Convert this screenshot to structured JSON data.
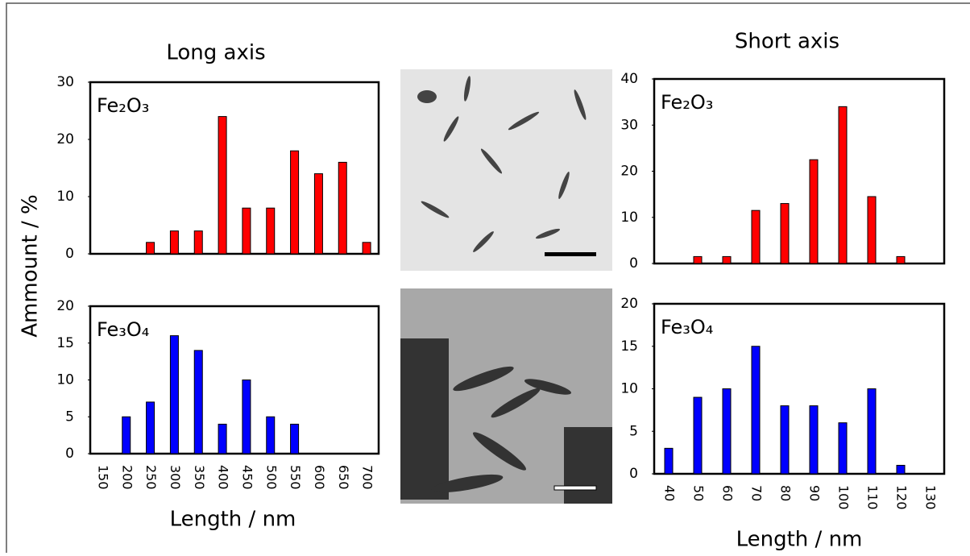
{
  "title_left": "Long axis",
  "title_right": "Short axis",
  "y_label": "Ammount / %",
  "chart_data": [
    {
      "type": "bar",
      "label": "Fe₂O₃",
      "color": "#ff0000",
      "values": [
        0,
        0,
        2,
        4,
        4,
        24,
        8,
        8,
        18,
        14,
        16,
        2
      ],
      "ylim": [
        0,
        30
      ],
      "yticks": [
        0,
        10,
        20,
        30
      ]
    },
    {
      "type": "bar",
      "label": "Fe₃O₄",
      "color": "#0000ff",
      "categories": [
        "150",
        "200",
        "250",
        "300",
        "350",
        "400",
        "450",
        "500",
        "550",
        "600",
        "650",
        "700"
      ],
      "values": [
        0,
        5,
        7,
        16,
        14,
        4,
        10,
        5,
        4,
        0,
        0,
        0
      ],
      "ylim": [
        0,
        20
      ],
      "yticks": [
        0,
        5,
        10,
        15,
        20
      ],
      "x_label": "Length / nm"
    },
    {
      "type": "bar",
      "label": "Fe₂O₃",
      "color": "#ff0000",
      "values": [
        0,
        1.5,
        1.5,
        11.5,
        13,
        22.5,
        34,
        14.5,
        1.5,
        0
      ],
      "ylim": [
        0,
        40
      ],
      "yticks": [
        0,
        10,
        20,
        30,
        40
      ]
    },
    {
      "type": "bar",
      "label": "Fe₃O₄",
      "color": "#0000ff",
      "categories": [
        "40",
        "50",
        "60",
        "70",
        "80",
        "90",
        "100",
        "110",
        "120",
        "130"
      ],
      "values": [
        3,
        9,
        10,
        15,
        8,
        8,
        6,
        10,
        1,
        0
      ],
      "ylim": [
        0,
        20
      ],
      "yticks": [
        0,
        5,
        10,
        15,
        20
      ],
      "x_label": "Length / nm"
    }
  ]
}
